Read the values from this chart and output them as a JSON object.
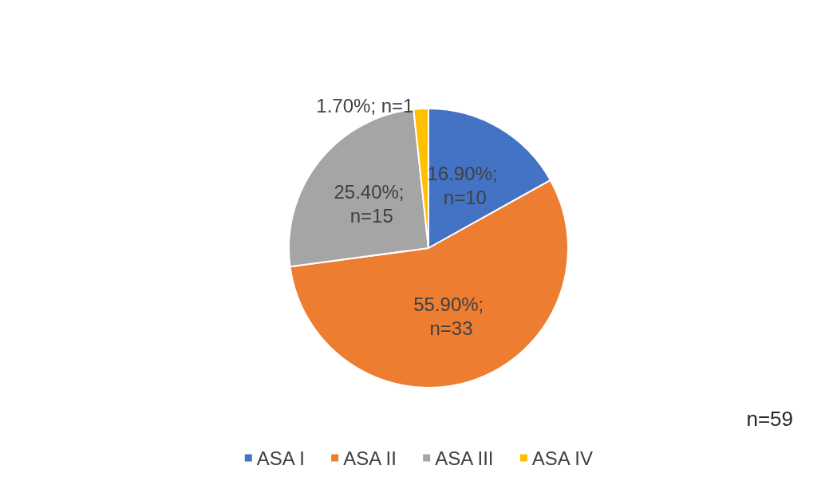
{
  "chart_data": {
    "type": "pie",
    "categories": [
      "ASA I",
      "ASA II",
      "ASA III",
      "ASA IV"
    ],
    "values": [
      16.9,
      55.9,
      25.4,
      1.7
    ],
    "colors": [
      "#4472c4",
      "#ed7d31",
      "#a5a5a5",
      "#ffc000"
    ],
    "value_labels": [
      "16.90%; n=10",
      "55.90%; n=33",
      "25.40%; n=15",
      "1.70%; n=1"
    ],
    "annotations": [
      "n=59"
    ],
    "legend": "bottom"
  }
}
